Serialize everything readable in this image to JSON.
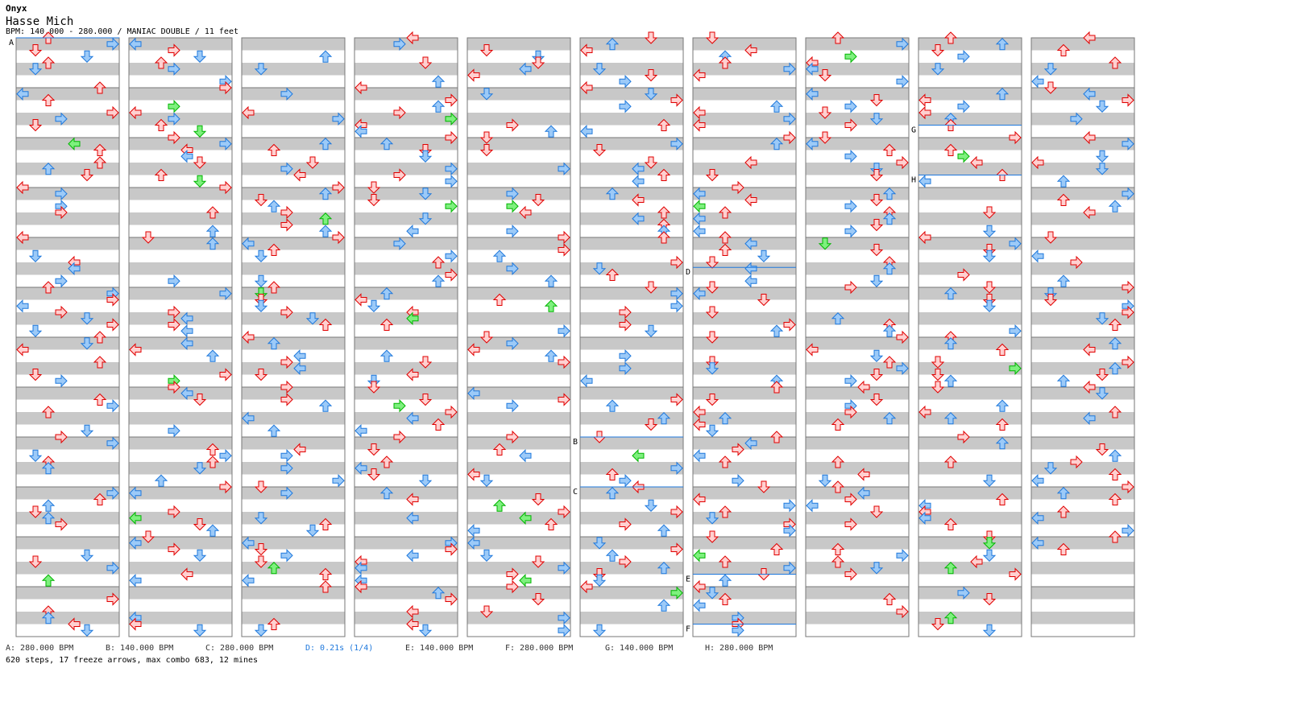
{
  "header": {
    "artist": "Onyx",
    "title": "Hasse Mich",
    "info": "BPM: 140.000 - 280.000 / MANIAC DOUBLE / 11 feet"
  },
  "markers": [
    {
      "label": "A",
      "column": 0,
      "measure": 0
    },
    {
      "label": "B",
      "column": 5,
      "measure": 8
    },
    {
      "label": "C",
      "column": 5,
      "measure": 9
    },
    {
      "label": "D",
      "column": 6,
      "measure": 4.6
    },
    {
      "label": "E",
      "column": 6,
      "measure": 10.75
    },
    {
      "label": "F",
      "column": 6,
      "measure": 11.75
    },
    {
      "label": "G",
      "column": 8,
      "measure": 1.75
    },
    {
      "label": "H",
      "column": 8,
      "measure": 2.75
    }
  ],
  "legend": [
    {
      "text": "A: 280.000 BPM",
      "highlight": false
    },
    {
      "text": "B: 140.000 BPM",
      "highlight": false
    },
    {
      "text": "C: 280.000 BPM",
      "highlight": false
    },
    {
      "text": "D: 0.21s (1/4)",
      "highlight": true
    },
    {
      "text": "E: 140.000 BPM",
      "highlight": false
    },
    {
      "text": "F: 280.000 BPM",
      "highlight": false
    },
    {
      "text": "G: 140.000 BPM",
      "highlight": false
    },
    {
      "text": "H: 280.000 BPM",
      "highlight": false
    }
  ],
  "stats": "620 steps, 17 freeze arrows, max combo 683, 12 mines",
  "colors": {
    "quarter": "#e00000",
    "eighth": "#1e78dc",
    "sixteenth": "#00b400",
    "marker": "#1e78dc",
    "stripe": "#c8c8c8"
  }
}
